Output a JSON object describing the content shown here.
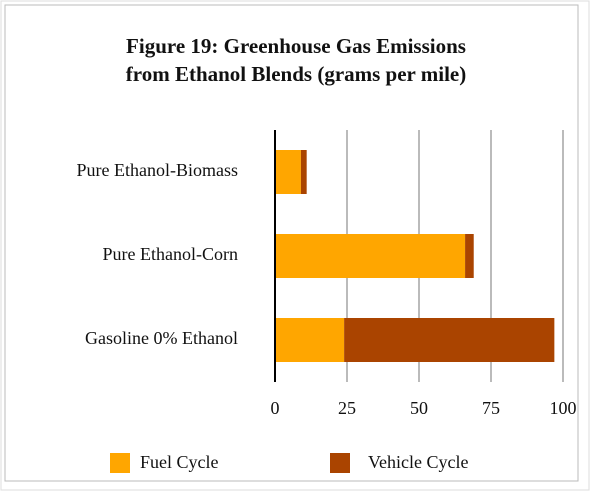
{
  "chart_data": {
    "type": "stacked-barh",
    "title": [
      "Figure 19: Greenhouse Gas Emissions",
      "from Ethanol Blends (grams per mile)"
    ],
    "categories": [
      "Pure Ethanol-Biomass",
      "Pure Ethanol-Corn",
      "Gasoline 0% Ethanol"
    ],
    "series": [
      {
        "name": "Fuel Cycle",
        "color": "#ffa600",
        "values": [
          9,
          66,
          24
        ]
      },
      {
        "name": "Vehicle Cycle",
        "color": "#aa4400",
        "values": [
          2,
          3,
          73
        ]
      }
    ],
    "xlim": [
      0,
      100
    ],
    "xticks": [
      0,
      25,
      50,
      75,
      100
    ],
    "grid": true,
    "legend": "bottom"
  }
}
